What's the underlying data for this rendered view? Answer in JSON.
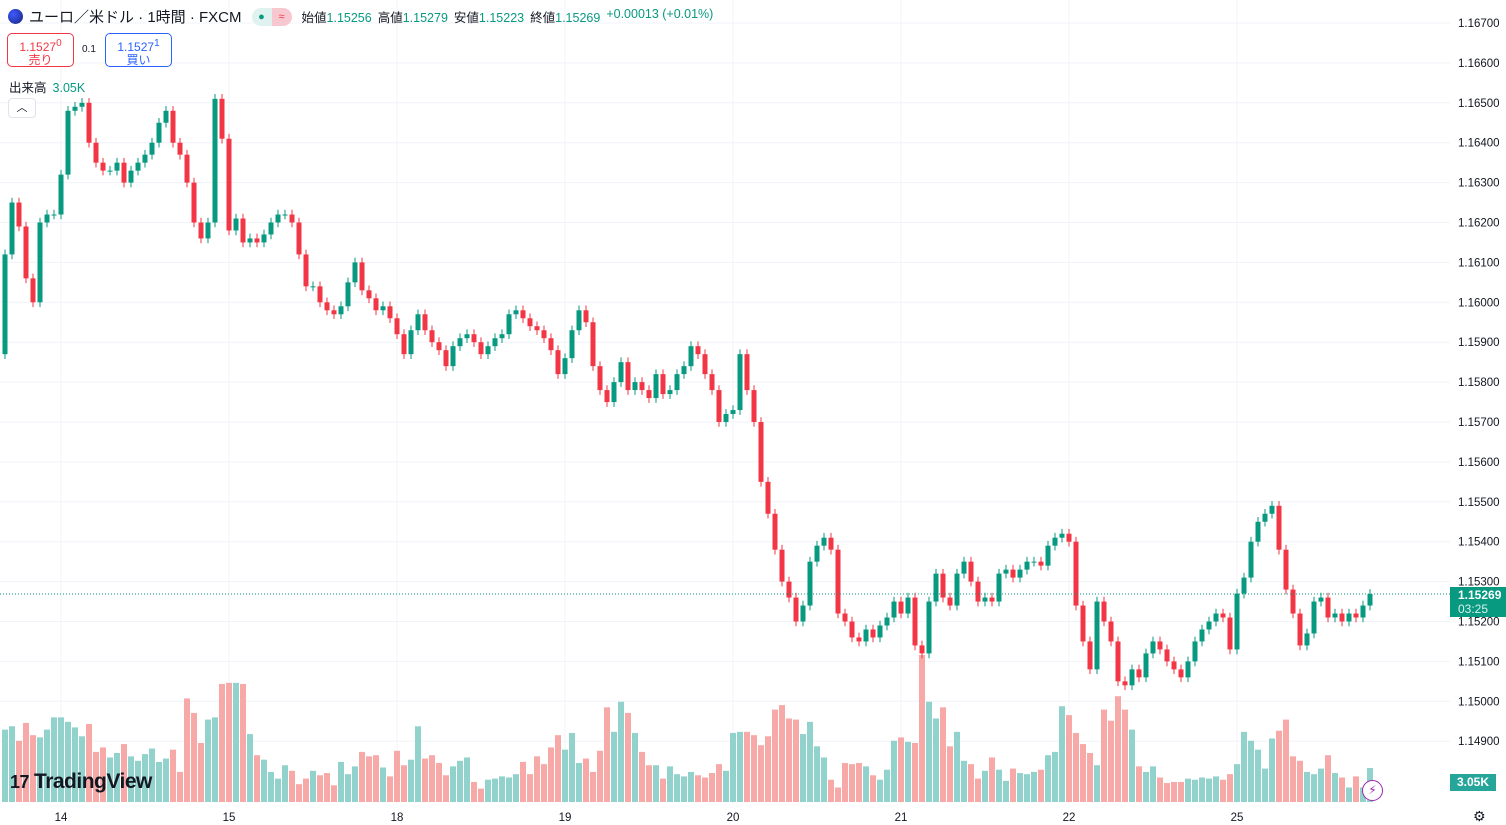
{
  "header": {
    "symbol": "ユーロ／米ドル · 1時間 · FXCM",
    "open_label": "始値",
    "open": "1.15256",
    "high_label": "高値",
    "high": "1.15279",
    "low_label": "安値",
    "low": "1.15223",
    "close_label": "終値",
    "close": "1.15269",
    "change": "+0.00013 (+0.01%)",
    "market_status_icon": "green-dot-icon",
    "delay_icon": "approx-icon"
  },
  "trade": {
    "sell_price": "1.15270",
    "sell_main": "1.1527",
    "sell_sub": "0",
    "sell_label": "売り",
    "spread": "0.1",
    "buy_price": "1.15271",
    "buy_main": "1.1527",
    "buy_sub": "1",
    "buy_label": "買い"
  },
  "volume": {
    "label": "出来高",
    "value": "3.05K"
  },
  "last_price": {
    "value": "1.15269",
    "countdown": "03:25"
  },
  "watermark": "TradingView",
  "colors": {
    "up": "#089981",
    "down": "#f23645",
    "vol_up": "#92d2cc",
    "vol_down": "#f7a9a7"
  },
  "chart_data": {
    "type": "candlestick",
    "ylim": [
      1.1488,
      1.1672
    ],
    "y_ticks": [
      "1.16700",
      "1.16600",
      "1.16500",
      "1.16400",
      "1.16300",
      "1.16200",
      "1.16100",
      "1.16000",
      "1.15900",
      "1.15800",
      "1.15700",
      "1.15600",
      "1.15500",
      "1.15400",
      "1.15300",
      "1.15200",
      "1.15100",
      "1.15000",
      "1.14900"
    ],
    "x_ticks": [
      {
        "label": "14",
        "index": 8
      },
      {
        "label": "15",
        "index": 32
      },
      {
        "label": "18",
        "index": 56
      },
      {
        "label": "19",
        "index": 80
      },
      {
        "label": "20",
        "index": 104
      },
      {
        "label": "21",
        "index": 128
      },
      {
        "label": "22",
        "index": 152
      },
      {
        "label": "25",
        "index": 176
      }
    ],
    "first_open": 1.1587,
    "closes": [
      1.1612,
      1.1625,
      1.1619,
      1.1606,
      1.16,
      1.162,
      1.1622,
      1.1622,
      1.1632,
      1.1648,
      1.1649,
      1.165,
      1.164,
      1.1635,
      1.1633,
      1.1633,
      1.1635,
      1.163,
      1.1633,
      1.1635,
      1.1637,
      1.164,
      1.1645,
      1.1648,
      1.164,
      1.1637,
      1.163,
      1.162,
      1.1616,
      1.162,
      1.1651,
      1.1641,
      1.1618,
      1.1621,
      1.1615,
      1.1616,
      1.1615,
      1.1617,
      1.162,
      1.1622,
      1.1622,
      1.162,
      1.1612,
      1.1604,
      1.1604,
      1.16,
      1.1598,
      1.1597,
      1.1599,
      1.1605,
      1.161,
      1.1603,
      1.1601,
      1.1598,
      1.1599,
      1.1596,
      1.1592,
      1.1587,
      1.1593,
      1.1597,
      1.1593,
      1.159,
      1.1588,
      1.1584,
      1.1589,
      1.1591,
      1.1592,
      1.159,
      1.1587,
      1.1589,
      1.1591,
      1.1592,
      1.1597,
      1.1598,
      1.1596,
      1.1594,
      1.1593,
      1.1591,
      1.1588,
      1.1582,
      1.1586,
      1.1593,
      1.1598,
      1.1595,
      1.1584,
      1.1578,
      1.1575,
      1.158,
      1.1585,
      1.1578,
      1.158,
      1.1578,
      1.1576,
      1.1582,
      1.1577,
      1.1578,
      1.1582,
      1.1584,
      1.1589,
      1.1587,
      1.1582,
      1.1578,
      1.157,
      1.1572,
      1.1573,
      1.1587,
      1.1578,
      1.157,
      1.1555,
      1.1547,
      1.1538,
      1.153,
      1.1526,
      1.152,
      1.1524,
      1.1535,
      1.1539,
      1.1541,
      1.1538,
      1.1522,
      1.152,
      1.1516,
      1.1515,
      1.1518,
      1.1516,
      1.1519,
      1.1521,
      1.1525,
      1.1522,
      1.1526,
      1.1514,
      1.1512,
      1.1525,
      1.1532,
      1.1526,
      1.1524,
      1.1532,
      1.1535,
      1.153,
      1.1525,
      1.1526,
      1.1525,
      1.1532,
      1.1533,
      1.1531,
      1.1533,
      1.1535,
      1.1535,
      1.1534,
      1.1539,
      1.1541,
      1.1542,
      1.154,
      1.1524,
      1.1515,
      1.1508,
      1.1525,
      1.152,
      1.1515,
      1.1505,
      1.1504,
      1.1508,
      1.1506,
      1.1512,
      1.1515,
      1.1513,
      1.151,
      1.1508,
      1.1506,
      1.151,
      1.1515,
      1.1518,
      1.152,
      1.1522,
      1.1521,
      1.1513,
      1.1527,
      1.1531,
      1.154,
      1.1545,
      1.1547,
      1.1549,
      1.1538,
      1.1528,
      1.1522,
      1.1514,
      1.1517,
      1.1525,
      1.1526,
      1.1521,
      1.1522,
      1.152,
      1.1522,
      1.1521,
      1.1524,
      1.15269
    ],
    "volumes_k": [
      6.5,
      6.8,
      5.5,
      7.1,
      6.0,
      5.8,
      6.5,
      7.6,
      7.6,
      7.2,
      6.7,
      5.9,
      7.0,
      4.5,
      4.9,
      4.0,
      4.4,
      5.2,
      4.1,
      3.7,
      4.3,
      4.8,
      3.6,
      3.9,
      4.7,
      2.7,
      9.3,
      8.0,
      5.3,
      7.4,
      7.6,
      10.6,
      10.7,
      10.7,
      10.6,
      6.1,
      4.2,
      3.8,
      2.7,
      2.1,
      3.3,
      2.8,
      1.6,
      2.1,
      2.8,
      2.4,
      2.6,
      1.5,
      3.6,
      2.5,
      3.2,
      4.5,
      4.1,
      4.2,
      3.1,
      2.3,
      4.6,
      3.3,
      3.8,
      6.8,
      3.9,
      4.2,
      3.5,
      2.4,
      3.2,
      3.7,
      4.0,
      1.8,
      1.2,
      2.0,
      2.1,
      2.3,
      2.2,
      2.5,
      3.6,
      2.5,
      4.1,
      3.4,
      4.9,
      6.0,
      4.7,
      6.2,
      3.5,
      3.9,
      2.7,
      4.6,
      8.5,
      6.3,
      9.0,
      8.0,
      6.2,
      4.5,
      3.3,
      3.3,
      2.1,
      3.2,
      2.5,
      2.3,
      2.7,
      2.4,
      2.2,
      2.6,
      3.4,
      2.8,
      6.2,
      6.3,
      6.3,
      6.0,
      5.1,
      5.9,
      8.3,
      8.7,
      7.5,
      7.4,
      6.1,
      7.2,
      5.0,
      4.0,
      2.0,
      1.3,
      3.5,
      3.4,
      3.5,
      3.2,
      2.4,
      2.0,
      2.9,
      5.5,
      5.8,
      5.4,
      5.3,
      13.2,
      9.0,
      7.5,
      8.5,
      5.0,
      6.3,
      3.7,
      3.4,
      2.1,
      2.8,
      4.0,
      2.9,
      1.9,
      3.0,
      2.6,
      2.5,
      2.7,
      2.9,
      4.2,
      4.5,
      8.6,
      7.8,
      6.2,
      5.2,
      4.4,
      3.3,
      8.3,
      7.3,
      9.5,
      8.3,
      6.5,
      3.2,
      2.7,
      3.2,
      2.2,
      1.7,
      1.8,
      1.8,
      2.1,
      2.0,
      2.2,
      2.1,
      2.3,
      2.0,
      2.5,
      3.4,
      6.3,
      5.5,
      4.7,
      3.0,
      5.7,
      6.4,
      7.4,
      4.1,
      3.7,
      2.7,
      2.5,
      3.0,
      4.2,
      2.6,
      2.2,
      1.3,
      2.3,
      1.3,
      3.05
    ]
  }
}
